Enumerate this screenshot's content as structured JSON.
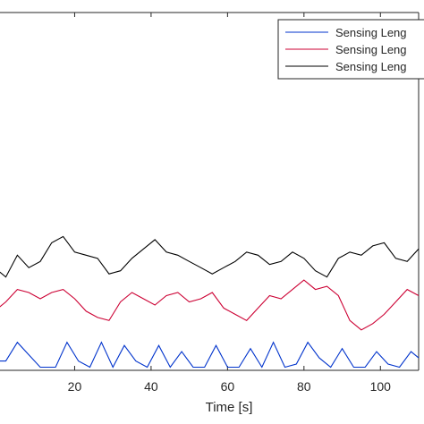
{
  "chart_data": {
    "type": "line",
    "title": "",
    "xlabel": "Time [s]",
    "ylabel": "",
    "xlim": [
      0,
      110
    ],
    "ylim": [
      0,
      11.5
    ],
    "xticks": [
      20,
      40,
      60,
      80,
      100
    ],
    "xtick_labels": [
      "20",
      "40",
      "60",
      "80",
      "100"
    ],
    "grid": false,
    "legend_position": "top-right",
    "series": [
      {
        "name": "Sensing Leng",
        "color": "#0033cc",
        "x": [
          0,
          2,
          5,
          8,
          11,
          15,
          18,
          21,
          24,
          27,
          30,
          33,
          36,
          39,
          42,
          45,
          48,
          51,
          54,
          57,
          60,
          63,
          66,
          69,
          72,
          75,
          78,
          81,
          84,
          87,
          90,
          93,
          96,
          99,
          102,
          105,
          108,
          110
        ],
        "y": [
          0.3,
          0.3,
          0.9,
          0.5,
          0.1,
          0.1,
          0.9,
          0.3,
          0.1,
          0.9,
          0.1,
          0.8,
          0.3,
          0.1,
          0.8,
          0.1,
          0.6,
          0.1,
          0.1,
          0.8,
          0.1,
          0.1,
          0.7,
          0.1,
          0.9,
          0.1,
          0.2,
          0.9,
          0.4,
          0.1,
          0.7,
          0.1,
          0.1,
          0.6,
          0.2,
          0.1,
          0.6,
          0.4
        ]
      },
      {
        "name": "Sensing Leng",
        "color": "#cc0033",
        "x": [
          0,
          2,
          5,
          8,
          11,
          14,
          17,
          20,
          23,
          26,
          29,
          32,
          35,
          38,
          41,
          44,
          47,
          50,
          53,
          56,
          59,
          62,
          65,
          68,
          71,
          74,
          77,
          80,
          83,
          86,
          89,
          92,
          95,
          98,
          101,
          104,
          107,
          110
        ],
        "y": [
          2.0,
          2.2,
          2.6,
          2.5,
          2.3,
          2.5,
          2.6,
          2.3,
          1.9,
          1.7,
          1.6,
          2.2,
          2.5,
          2.3,
          2.1,
          2.4,
          2.5,
          2.2,
          2.3,
          2.5,
          2.0,
          1.8,
          1.6,
          2.0,
          2.4,
          2.3,
          2.6,
          2.9,
          2.6,
          2.7,
          2.4,
          1.6,
          1.3,
          1.5,
          1.8,
          2.2,
          2.6,
          2.4
        ]
      },
      {
        "name": "Sensing Leng",
        "color": "#000000",
        "x": [
          0,
          2,
          5,
          8,
          11,
          14,
          17,
          20,
          23,
          26,
          29,
          32,
          35,
          38,
          41,
          44,
          47,
          50,
          53,
          56,
          59,
          62,
          65,
          68,
          71,
          74,
          77,
          80,
          83,
          86,
          89,
          92,
          95,
          98,
          101,
          104,
          107,
          110
        ],
        "y": [
          3.2,
          3.0,
          3.7,
          3.3,
          3.5,
          4.1,
          4.3,
          3.8,
          3.7,
          3.6,
          3.1,
          3.2,
          3.6,
          3.9,
          4.2,
          3.8,
          3.7,
          3.5,
          3.3,
          3.1,
          3.3,
          3.5,
          3.8,
          3.7,
          3.4,
          3.5,
          3.8,
          3.6,
          3.2,
          3.0,
          3.6,
          3.8,
          3.7,
          4.0,
          4.1,
          3.6,
          3.5,
          3.9
        ]
      }
    ]
  }
}
